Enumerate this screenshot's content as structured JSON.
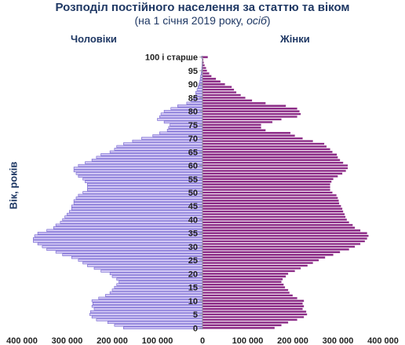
{
  "chart_data": {
    "type": "bar",
    "orientation": "horizontal-population-pyramid",
    "title": "Розподіл постійного населення за статтю та віком",
    "subtitle_prefix": "(на 1 січня 2019 року, ",
    "subtitle_unit": "осіб",
    "subtitle_suffix": ")",
    "ylabel": "Вік, років",
    "left_label": "Чоловіки",
    "right_label": "Жінки",
    "age_tick_labels": [
      "0",
      "5",
      "10",
      "15",
      "20",
      "25",
      "30",
      "35",
      "40",
      "45",
      "50",
      "55",
      "60",
      "65",
      "70",
      "75",
      "80",
      "85",
      "90",
      "95",
      "100 і старше"
    ],
    "x_tick_labels": [
      "400 000",
      "300 000",
      "200 000",
      "100 000",
      "0",
      "100 000",
      "200 000",
      "300 000",
      "400 000"
    ],
    "xlim": [
      -400000,
      400000
    ],
    "ages": [
      0,
      1,
      2,
      3,
      4,
      5,
      6,
      7,
      8,
      9,
      10,
      11,
      12,
      13,
      14,
      15,
      16,
      17,
      18,
      19,
      20,
      21,
      22,
      23,
      24,
      25,
      26,
      27,
      28,
      29,
      30,
      31,
      32,
      33,
      34,
      35,
      36,
      37,
      38,
      39,
      40,
      41,
      42,
      43,
      44,
      45,
      46,
      47,
      48,
      49,
      50,
      51,
      52,
      53,
      54,
      55,
      56,
      57,
      58,
      59,
      60,
      61,
      62,
      63,
      64,
      65,
      66,
      67,
      68,
      69,
      70,
      71,
      72,
      73,
      74,
      75,
      76,
      77,
      78,
      79,
      80,
      81,
      82,
      83,
      84,
      85,
      86,
      87,
      88,
      89,
      90,
      91,
      92,
      93,
      94,
      95,
      96,
      97,
      98,
      99,
      100
    ],
    "series": [
      {
        "name": "Чоловіки",
        "color": "#d4caf5",
        "edge": "#6a5acd",
        "values": [
          175000,
          195000,
          210000,
          235000,
          245000,
          250000,
          248000,
          240000,
          245000,
          243000,
          245000,
          230000,
          215000,
          205000,
          200000,
          195000,
          190000,
          185000,
          190000,
          200000,
          205000,
          225000,
          240000,
          255000,
          265000,
          275000,
          290000,
          310000,
          325000,
          345000,
          355000,
          365000,
          375000,
          375000,
          372000,
          365000,
          345000,
          330000,
          325000,
          315000,
          310000,
          305000,
          300000,
          295000,
          290000,
          290000,
          285000,
          285000,
          280000,
          275000,
          265000,
          255000,
          255000,
          255000,
          260000,
          265000,
          275000,
          280000,
          285000,
          285000,
          275000,
          260000,
          245000,
          235000,
          225000,
          205000,
          195000,
          190000,
          175000,
          155000,
          135000,
          110000,
          95000,
          78000,
          75000,
          72000,
          85000,
          100000,
          95000,
          92000,
          85000,
          70000,
          55000,
          35000,
          25000,
          20000,
          15000,
          15000,
          12000,
          10000,
          8000,
          6000,
          5000,
          4000,
          3000,
          2000,
          1500,
          1000,
          800,
          500,
          2000
        ]
      },
      {
        "name": "Жінки",
        "color": "#8b2a86",
        "edge": "#ffffff",
        "values": [
          160000,
          175000,
          190000,
          210000,
          225000,
          232000,
          230000,
          222000,
          225000,
          222000,
          225000,
          210000,
          200000,
          193000,
          190000,
          183000,
          180000,
          175000,
          178000,
          185000,
          190000,
          205000,
          218000,
          233000,
          245000,
          258000,
          272000,
          290000,
          305000,
          325000,
          338000,
          350000,
          360000,
          365000,
          368000,
          365000,
          350000,
          338000,
          333000,
          325000,
          320000,
          317000,
          315000,
          312000,
          310000,
          307000,
          303000,
          302000,
          300000,
          297000,
          288000,
          283000,
          283000,
          283000,
          286000,
          290000,
          300000,
          310000,
          318000,
          322000,
          322000,
          312000,
          305000,
          300000,
          298000,
          288000,
          283000,
          275000,
          270000,
          245000,
          222000,
          205000,
          195000,
          140000,
          130000,
          130000,
          155000,
          175000,
          210000,
          218000,
          215000,
          210000,
          185000,
          140000,
          110000,
          95000,
          85000,
          75000,
          70000,
          65000,
          50000,
          40000,
          30000,
          20000,
          15000,
          10000,
          8000,
          5000,
          3000,
          2000,
          12000
        ]
      }
    ]
  }
}
